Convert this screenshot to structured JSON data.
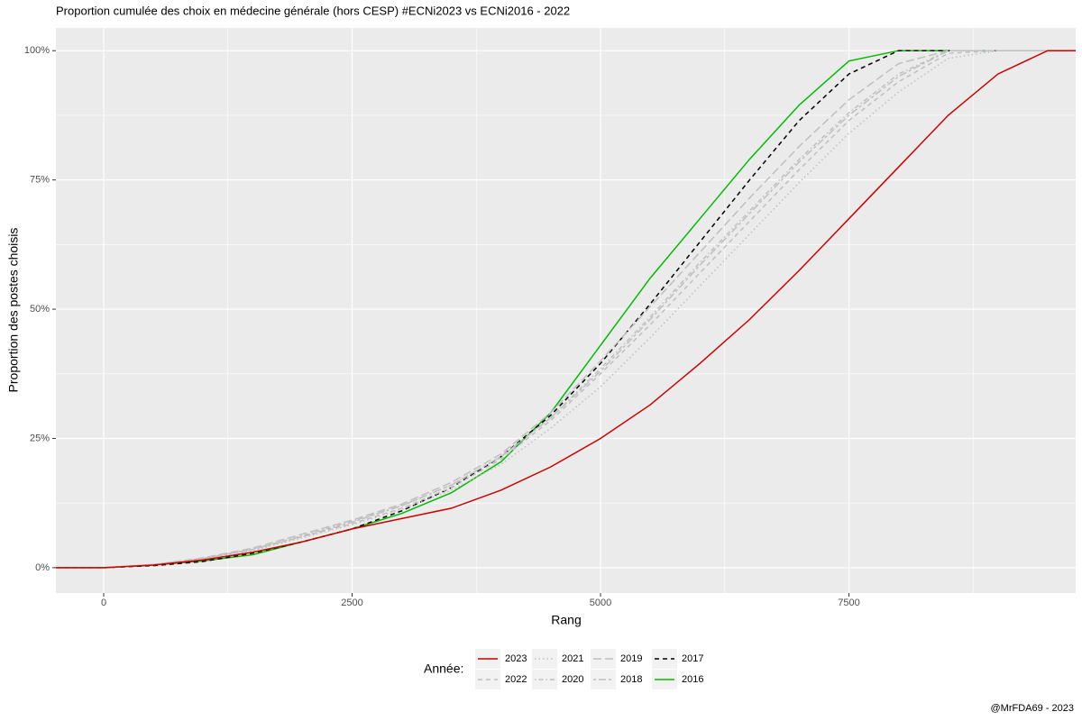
{
  "chart_data": {
    "type": "line",
    "title": "Proportion cumulée des choix en médecine générale (hors CESP) #ECNi2023 vs ECNi2016 - 2022",
    "x_label": "Rang",
    "y_label": "Proportion des postes choisis",
    "legend_title": "Année:",
    "caption": "@MrFDA69 - 2023",
    "legend_position": "bottom",
    "grid": true,
    "xlim": [
      -481,
      9782
    ],
    "ylim": [
      -4.9,
      104.4
    ],
    "xticks": [
      0,
      2500,
      5000,
      7500
    ],
    "yticks": [
      {
        "value": 0,
        "label": "0%"
      },
      {
        "value": 25,
        "label": "25%"
      },
      {
        "value": 50,
        "label": "50%"
      },
      {
        "value": 75,
        "label": "75%"
      },
      {
        "value": 100,
        "label": "100%"
      }
    ],
    "x": [
      -481,
      0,
      500,
      1000,
      1500,
      2000,
      2500,
      3000,
      3500,
      4000,
      4500,
      5000,
      5500,
      6000,
      6500,
      7000,
      7500,
      8000,
      8500,
      9000,
      9500,
      9782
    ],
    "series": [
      {
        "name": "2023",
        "color": "#cc0000",
        "linetype": "solid",
        "values": [
          0,
          0,
          0.5,
          1.5,
          3,
          5,
          7.5,
          9.5,
          11.5,
          15,
          19.5,
          25,
          31.5,
          39.5,
          48,
          57.5,
          67.5,
          77.5,
          87.5,
          95.5,
          100,
          100
        ]
      },
      {
        "name": "2022",
        "color": "#bfbfbf",
        "linetype": "dashed",
        "values": [
          0,
          0,
          0.6,
          1.8,
          3.5,
          6,
          8.5,
          11.5,
          15.5,
          21,
          28.5,
          37.5,
          47,
          57,
          67,
          77,
          86.5,
          94,
          99.5,
          100,
          100,
          100
        ]
      },
      {
        "name": "2021",
        "color": "#bfbfbf",
        "linetype": "dotted",
        "values": [
          0,
          0,
          0.6,
          1.7,
          3.3,
          5.8,
          8.3,
          11.3,
          15,
          20,
          27,
          35,
          44.5,
          54.5,
          64.5,
          74.5,
          84,
          92,
          98.5,
          100,
          100,
          100
        ]
      },
      {
        "name": "2020",
        "color": "#bfbfbf",
        "linetype": "dotdash",
        "values": [
          0,
          0,
          0.6,
          1.8,
          3.5,
          6.2,
          9,
          12,
          16,
          21.5,
          29,
          38.5,
          48.5,
          59,
          69,
          79,
          88,
          95.5,
          100,
          100,
          100,
          100
        ]
      },
      {
        "name": "2019",
        "color": "#bfbfbf",
        "linetype": "longdash",
        "values": [
          0,
          0,
          0.6,
          1.9,
          3.8,
          6.5,
          9.2,
          12.3,
          16.5,
          22,
          30,
          40,
          50.5,
          61,
          71.5,
          81.5,
          90.5,
          97.5,
          100,
          100,
          100,
          100
        ]
      },
      {
        "name": "2018",
        "color": "#bfbfbf",
        "linetype": "twodash",
        "values": [
          0,
          0,
          0.6,
          1.8,
          3.6,
          6,
          8.8,
          12,
          16,
          21.5,
          29,
          38,
          48,
          58.5,
          68.5,
          78.5,
          87.5,
          95,
          100,
          100,
          100,
          100
        ]
      },
      {
        "name": "2017",
        "color": "#000000",
        "linetype": "dashed",
        "values": [
          0,
          0,
          0.4,
          1.2,
          2.8,
          5,
          7.5,
          11,
          15.5,
          21.5,
          29.5,
          39.5,
          51,
          63,
          75,
          86.5,
          95.5,
          100,
          100,
          100,
          100,
          100
        ]
      },
      {
        "name": "2016",
        "color": "#00bb00",
        "linetype": "solid",
        "values": [
          0,
          0,
          0.5,
          1.3,
          2.5,
          5,
          7.5,
          10.5,
          14.5,
          20.5,
          30,
          43,
          56,
          67.5,
          79,
          89.5,
          98,
          100,
          100,
          100,
          100,
          100
        ]
      }
    ]
  }
}
